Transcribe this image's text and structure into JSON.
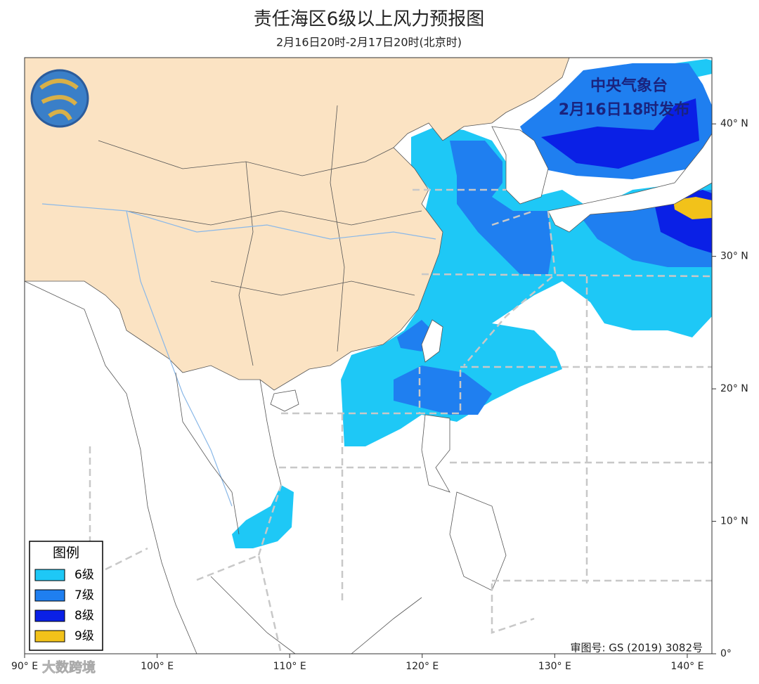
{
  "header": {
    "title": "责任海区6级以上风力预报图",
    "subtitle": "2月16日20时-2月17日20时(北京时)"
  },
  "issuer": [
    "中央气象台",
    "2月16日18时发布"
  ],
  "map": {
    "xlim": [
      90,
      141.86
    ],
    "ylim": [
      0,
      45
    ],
    "xticks": [
      {
        "value": 90,
        "label": "90° E"
      },
      {
        "value": 100,
        "label": "100° E"
      },
      {
        "value": 110,
        "label": "110° E"
      },
      {
        "value": 120,
        "label": "120° E"
      },
      {
        "value": 130,
        "label": "130° E"
      },
      {
        "value": 140,
        "label": "140° E"
      }
    ],
    "yticks": [
      {
        "value": 0,
        "label": "0°"
      },
      {
        "value": 10,
        "label": "10° N"
      },
      {
        "value": 20,
        "label": "20° N"
      },
      {
        "value": 30,
        "label": "30° N"
      },
      {
        "value": 40,
        "label": "40° N"
      }
    ]
  },
  "legend": {
    "title": "图例",
    "items": [
      {
        "label": "6级",
        "color": "#1ec8f6"
      },
      {
        "label": "7级",
        "color": "#1f7ff0"
      },
      {
        "label": "8级",
        "color": "#0a20e6"
      },
      {
        "label": "9级",
        "color": "#f2c21a"
      }
    ]
  },
  "review_number": "审图号: GS (2019) 3082号",
  "watermark": "大数跨境"
}
